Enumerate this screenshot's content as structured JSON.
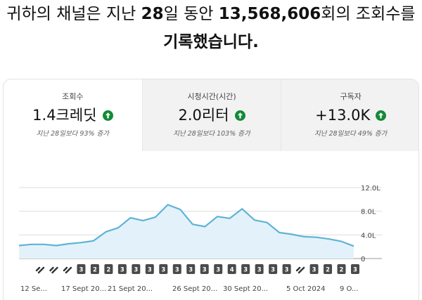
{
  "headline": {
    "prefix": "귀하의 채널은 지난 ",
    "days": "28",
    "middle": "일 동안 ",
    "views": "13,568,606",
    "suffix": "회의 조회수를",
    "line2": "기록했습니다."
  },
  "tabs": [
    {
      "title": "조회수",
      "value": "1.4크레딧",
      "sub": "지난 28일보다 93% 증가",
      "active": true
    },
    {
      "title": "시청시간(시간)",
      "value": "2.0리터",
      "sub": "지난 28일보다 103% 증가",
      "active": false
    },
    {
      "title": "구독자",
      "value": "+13.0K",
      "sub": "지난 28일보다 49% 증가",
      "active": false
    }
  ],
  "colors": {
    "accent_green": "#138a36",
    "line": "#5fb3d7",
    "fill": "#e3f2fa",
    "badge": "#4a4a4a"
  },
  "chart_data": {
    "type": "area",
    "y_ticks": [
      "12.0L",
      "8.0L",
      "4.0L",
      "0"
    ],
    "ylim": [
      0,
      12.0
    ],
    "x_tick_labels": [
      "12 Se...",
      "17 Sept 20...",
      "21 Sept 20...",
      "26 Sept 20...",
      "30 Sept 20...",
      "5 Oct 2024",
      "9 O..."
    ],
    "values": [
      2.2,
      2.4,
      2.4,
      2.2,
      2.5,
      2.7,
      3.0,
      4.5,
      5.2,
      6.9,
      6.4,
      7.0,
      9.1,
      8.3,
      5.8,
      5.4,
      7.1,
      6.8,
      8.4,
      6.5,
      6.1,
      4.4,
      4.1,
      3.7,
      3.6,
      3.3,
      2.9,
      2.1
    ],
    "grid": true,
    "markers": [
      "link",
      "link",
      "link",
      "3",
      "2",
      "2",
      "3",
      "3",
      "3",
      "3",
      "3",
      "3",
      "3",
      "3",
      "4",
      "3",
      "3",
      "3",
      "3",
      "link",
      "3",
      "2",
      "2",
      "3"
    ]
  }
}
